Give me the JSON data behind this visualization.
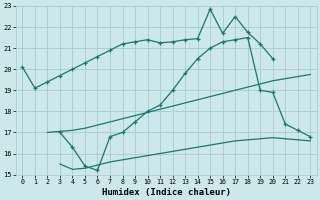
{
  "xlabel": "Humidex (Indice chaleur)",
  "bg_color": "#cce8ea",
  "grid_color": "#aacfd2",
  "line_color": "#1a7870",
  "xlim": [
    -0.5,
    23.5
  ],
  "ylim": [
    15,
    23
  ],
  "xticks": [
    0,
    1,
    2,
    3,
    4,
    5,
    6,
    7,
    8,
    9,
    10,
    11,
    12,
    13,
    14,
    15,
    16,
    17,
    18,
    19,
    20,
    21,
    22,
    23
  ],
  "yticks": [
    15,
    16,
    17,
    18,
    19,
    20,
    21,
    22,
    23
  ],
  "line1_x": [
    0,
    1,
    2,
    3,
    4,
    5,
    6,
    7,
    8,
    9,
    10,
    11,
    12,
    13,
    14,
    15,
    16,
    17,
    18,
    19,
    20
  ],
  "line1_y": [
    20.1,
    19.1,
    19.4,
    19.7,
    20.0,
    20.3,
    20.6,
    20.9,
    21.2,
    21.3,
    21.4,
    21.25,
    21.3,
    21.4,
    21.45,
    22.85,
    21.7,
    22.5,
    21.75,
    21.2,
    20.5
  ],
  "line2_x": [
    2,
    3,
    4,
    5,
    6,
    7,
    8,
    9,
    10,
    11,
    12,
    13,
    14,
    15,
    16,
    17,
    18,
    19,
    20,
    21,
    22,
    23
  ],
  "line2_y": [
    17.0,
    17.05,
    17.1,
    17.2,
    17.35,
    17.5,
    17.65,
    17.8,
    17.95,
    18.1,
    18.25,
    18.4,
    18.55,
    18.7,
    18.85,
    19.0,
    19.15,
    19.3,
    19.45,
    19.55,
    19.65,
    19.75
  ],
  "line3_x": [
    3,
    4,
    5,
    6,
    7,
    8,
    9,
    10,
    11,
    12,
    13,
    14,
    15,
    16,
    17,
    18,
    19,
    20,
    21,
    22,
    23
  ],
  "line3_y": [
    15.5,
    15.25,
    15.3,
    15.45,
    15.6,
    15.7,
    15.8,
    15.9,
    16.0,
    16.1,
    16.2,
    16.3,
    16.4,
    16.5,
    16.6,
    16.65,
    16.7,
    16.75,
    16.7,
    16.65,
    16.6
  ],
  "line4_x": [
    3,
    4,
    5,
    6,
    7,
    8,
    9,
    10,
    11,
    12,
    13,
    14,
    15,
    16,
    17,
    18,
    19,
    20,
    21,
    22,
    23
  ],
  "line4_y": [
    17.0,
    16.3,
    15.4,
    15.2,
    16.8,
    17.0,
    17.5,
    18.0,
    18.3,
    19.0,
    19.8,
    20.5,
    21.0,
    21.3,
    21.4,
    21.5,
    19.0,
    18.9,
    17.4,
    17.1,
    16.8
  ]
}
